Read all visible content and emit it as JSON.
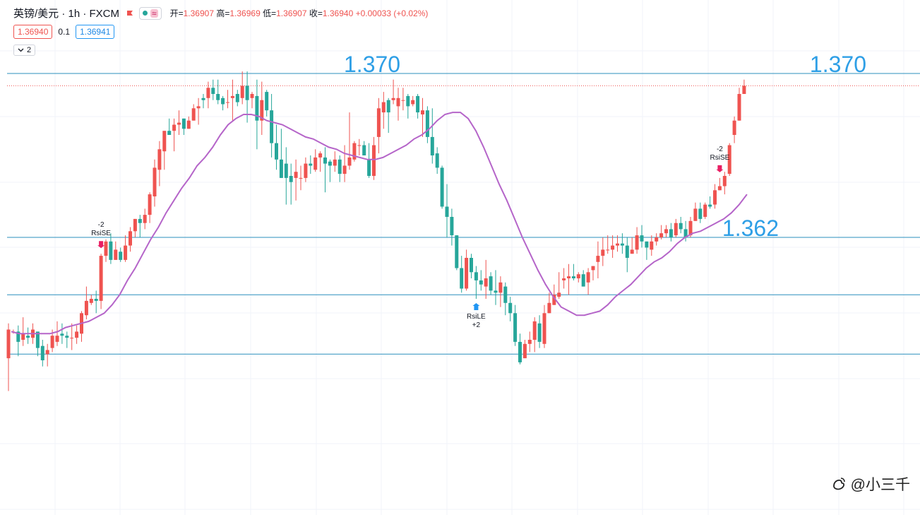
{
  "header": {
    "symbol": "英镑/美元 · 1h · FXCM",
    "ohlc": [
      {
        "label": "开=",
        "value": "1.36907"
      },
      {
        "label": "高=",
        "value": "1.36969"
      },
      {
        "label": "低=",
        "value": "1.36907"
      },
      {
        "label": "收=",
        "value": "1.36940"
      }
    ],
    "change": "+0.00033 (+0.02%)",
    "bid": "1.36940",
    "spread": "0.1",
    "ask": "1.36941",
    "collapse_count": "2"
  },
  "watermark": "@小三千",
  "colors": {
    "up": "#ef5350",
    "down": "#26a69a",
    "ma": "#b565c9",
    "hline": "#2b8fbe",
    "label": "#2e9fe6"
  },
  "chart_data": {
    "type": "candlestick",
    "ylim": [
      1.3565,
      1.3715
    ],
    "price_levels": [
      1.37,
      1.362,
      1.3592,
      1.3563
    ],
    "level_labels": [
      {
        "text": "1.370",
        "level": 1.37,
        "placement": "center"
      },
      {
        "text": "1.370",
        "level": 1.37,
        "placement": "right"
      },
      {
        "text": "1.362",
        "level": 1.362,
        "placement": "right"
      }
    ],
    "current_price": 1.3694,
    "candles": [
      [
        1.3561,
        1.3575,
        1.3545,
        1.3578
      ],
      [
        1.3574,
        1.3574,
        1.3573,
        1.3575
      ],
      [
        1.3574,
        1.3569,
        1.3562,
        1.3577
      ],
      [
        1.357,
        1.3573,
        1.3567,
        1.3581
      ],
      [
        1.3572,
        1.3571,
        1.3568,
        1.3576
      ],
      [
        1.3571,
        1.3575,
        1.3568,
        1.3578
      ],
      [
        1.3574,
        1.3566,
        1.3562,
        1.3574
      ],
      [
        1.3567,
        1.356,
        1.3557,
        1.357
      ],
      [
        1.3563,
        1.3565,
        1.3557,
        1.3568
      ],
      [
        1.3566,
        1.3572,
        1.3564,
        1.3575
      ],
      [
        1.3569,
        1.3572,
        1.3567,
        1.3579
      ],
      [
        1.3573,
        1.3572,
        1.3568,
        1.3578
      ],
      [
        1.3572,
        1.3571,
        1.3566,
        1.3574
      ],
      [
        1.3571,
        1.3571,
        1.3565,
        1.3578
      ],
      [
        1.3571,
        1.3574,
        1.3568,
        1.3577
      ],
      [
        1.3573,
        1.3583,
        1.3569,
        1.3584
      ],
      [
        1.3582,
        1.3589,
        1.358,
        1.3596
      ],
      [
        1.3588,
        1.359,
        1.3587,
        1.3592
      ],
      [
        1.359,
        1.3589,
        1.3583,
        1.3594
      ],
      [
        1.3589,
        1.3611,
        1.3585,
        1.3612
      ],
      [
        1.3611,
        1.3618,
        1.3608,
        1.3619
      ],
      [
        1.3618,
        1.3609,
        1.3607,
        1.3622
      ],
      [
        1.3609,
        1.3614,
        1.3609,
        1.3618
      ],
      [
        1.3613,
        1.3609,
        1.3608,
        1.3615
      ],
      [
        1.3609,
        1.3616,
        1.3608,
        1.3621
      ],
      [
        1.3616,
        1.3623,
        1.3613,
        1.3625
      ],
      [
        1.3623,
        1.3629,
        1.362,
        1.3629
      ],
      [
        1.3629,
        1.3627,
        1.362,
        1.3631
      ],
      [
        1.3627,
        1.3631,
        1.3624,
        1.3634
      ],
      [
        1.3631,
        1.3641,
        1.3627,
        1.3642
      ],
      [
        1.364,
        1.3654,
        1.3635,
        1.3658
      ],
      [
        1.3653,
        1.3663,
        1.3645,
        1.3667
      ],
      [
        1.3662,
        1.3672,
        1.3653,
        1.3672
      ],
      [
        1.3672,
        1.367,
        1.367,
        1.3678
      ],
      [
        1.3672,
        1.3675,
        1.3662,
        1.3678
      ],
      [
        1.3675,
        1.3676,
        1.367,
        1.3682
      ],
      [
        1.3678,
        1.3673,
        1.367,
        1.3678
      ],
      [
        1.3673,
        1.3677,
        1.3673,
        1.3679
      ],
      [
        1.3677,
        1.3683,
        1.3677,
        1.3685
      ],
      [
        1.3683,
        1.3684,
        1.3675,
        1.3688
      ],
      [
        1.3688,
        1.3687,
        1.3683,
        1.369
      ],
      [
        1.3688,
        1.3693,
        1.3683,
        1.3696
      ],
      [
        1.3693,
        1.369,
        1.3687,
        1.3697
      ],
      [
        1.369,
        1.3687,
        1.3685,
        1.3697
      ],
      [
        1.3688,
        1.3685,
        1.3682,
        1.3689
      ],
      [
        1.3686,
        1.3686,
        1.3683,
        1.3692
      ],
      [
        1.3688,
        1.3689,
        1.3677,
        1.3697
      ],
      [
        1.369,
        1.3686,
        1.3684,
        1.3692
      ],
      [
        1.3688,
        1.3694,
        1.3685,
        1.3701
      ],
      [
        1.3694,
        1.3687,
        1.3676,
        1.3701
      ],
      [
        1.3688,
        1.369,
        1.3683,
        1.3691
      ],
      [
        1.3689,
        1.3677,
        1.3663,
        1.3697
      ],
      [
        1.3677,
        1.3687,
        1.367,
        1.3696
      ],
      [
        1.3691,
        1.3682,
        1.3679,
        1.3692
      ],
      [
        1.3682,
        1.3666,
        1.3659,
        1.369
      ],
      [
        1.3666,
        1.3658,
        1.3653,
        1.3675
      ],
      [
        1.3658,
        1.3649,
        1.3649,
        1.3673
      ],
      [
        1.3656,
        1.3649,
        1.3636,
        1.3664
      ],
      [
        1.365,
        1.3647,
        1.3636,
        1.3656
      ],
      [
        1.3649,
        1.3652,
        1.3638,
        1.3658
      ],
      [
        1.3649,
        1.3649,
        1.3643,
        1.3655
      ],
      [
        1.3649,
        1.3656,
        1.3647,
        1.3659
      ],
      [
        1.3656,
        1.3655,
        1.3651,
        1.366
      ],
      [
        1.3653,
        1.3659,
        1.3652,
        1.3663
      ],
      [
        1.3659,
        1.3661,
        1.3652,
        1.3662
      ],
      [
        1.3659,
        1.3656,
        1.3642,
        1.3664
      ],
      [
        1.3657,
        1.3655,
        1.3647,
        1.3658
      ],
      [
        1.3655,
        1.3658,
        1.3652,
        1.3662
      ],
      [
        1.3658,
        1.3651,
        1.3647,
        1.366
      ],
      [
        1.3651,
        1.3655,
        1.3647,
        1.3665
      ],
      [
        1.3655,
        1.3659,
        1.3653,
        1.3681
      ],
      [
        1.3658,
        1.3666,
        1.3657,
        1.3667
      ],
      [
        1.3665,
        1.3665,
        1.366,
        1.3668
      ],
      [
        1.3665,
        1.366,
        1.366,
        1.3667
      ],
      [
        1.3658,
        1.365,
        1.3649,
        1.3666
      ],
      [
        1.365,
        1.3665,
        1.3648,
        1.3669
      ],
      [
        1.3669,
        1.3683,
        1.3661,
        1.3688
      ],
      [
        1.3681,
        1.3686,
        1.3673,
        1.3691
      ],
      [
        1.3687,
        1.3681,
        1.3671,
        1.3688
      ],
      [
        1.3687,
        1.3688,
        1.3685,
        1.3697
      ],
      [
        1.3684,
        1.3688,
        1.3677,
        1.3693
      ],
      [
        1.3687,
        1.3687,
        1.3682,
        1.3693
      ],
      [
        1.3689,
        1.3684,
        1.3678,
        1.369
      ],
      [
        1.3685,
        1.3687,
        1.3684,
        1.3689
      ],
      [
        1.3689,
        1.3681,
        1.3678,
        1.369
      ],
      [
        1.368,
        1.3682,
        1.3669,
        1.3688
      ],
      [
        1.3682,
        1.3669,
        1.3666,
        1.3684
      ],
      [
        1.3669,
        1.366,
        1.3656,
        1.3683
      ],
      [
        1.3661,
        1.3654,
        1.3651,
        1.3664
      ],
      [
        1.3654,
        1.3635,
        1.3634,
        1.3655
      ],
      [
        1.3635,
        1.363,
        1.362,
        1.3646
      ],
      [
        1.363,
        1.3621,
        1.3616,
        1.3634
      ],
      [
        1.3621,
        1.3605,
        1.3604,
        1.3621
      ],
      [
        1.3605,
        1.3595,
        1.3593,
        1.3611
      ],
      [
        1.3595,
        1.361,
        1.3594,
        1.3614
      ],
      [
        1.361,
        1.3603,
        1.36,
        1.3612
      ],
      [
        1.3603,
        1.3599,
        1.359,
        1.3606
      ],
      [
        1.3599,
        1.3597,
        1.3594,
        1.3604
      ],
      [
        1.3596,
        1.36,
        1.359,
        1.3609
      ],
      [
        1.3601,
        1.3594,
        1.3592,
        1.3603
      ],
      [
        1.3594,
        1.3593,
        1.3587,
        1.3604
      ],
      [
        1.3593,
        1.3598,
        1.3586,
        1.3601
      ],
      [
        1.3596,
        1.3588,
        1.3582,
        1.3598
      ],
      [
        1.3588,
        1.3583,
        1.3579,
        1.3591
      ],
      [
        1.3583,
        1.3569,
        1.3567,
        1.3587
      ],
      [
        1.3569,
        1.3559,
        1.3558,
        1.3573
      ],
      [
        1.3561,
        1.3568,
        1.3561,
        1.357
      ],
      [
        1.3568,
        1.357,
        1.3564,
        1.3574
      ],
      [
        1.357,
        1.3579,
        1.3564,
        1.3581
      ],
      [
        1.3578,
        1.3569,
        1.3566,
        1.3582
      ],
      [
        1.3568,
        1.3583,
        1.3566,
        1.3587
      ],
      [
        1.3583,
        1.3588,
        1.3583,
        1.3593
      ],
      [
        1.3587,
        1.3592,
        1.3587,
        1.3597
      ],
      [
        1.3591,
        1.3593,
        1.359,
        1.3603
      ],
      [
        1.3599,
        1.36,
        1.3595,
        1.3605
      ],
      [
        1.36,
        1.3601,
        1.3592,
        1.3607
      ],
      [
        1.3601,
        1.36,
        1.3599,
        1.3607
      ],
      [
        1.36,
        1.3602,
        1.3598,
        1.3603
      ],
      [
        1.3602,
        1.3596,
        1.3596,
        1.3604
      ],
      [
        1.3598,
        1.3603,
        1.3592,
        1.3605
      ],
      [
        1.3604,
        1.3606,
        1.3599,
        1.3606
      ],
      [
        1.3608,
        1.3611,
        1.36,
        1.3618
      ],
      [
        1.3611,
        1.3614,
        1.3606,
        1.362
      ],
      [
        1.3614,
        1.3614,
        1.3612,
        1.3621
      ],
      [
        1.3614,
        1.3616,
        1.361,
        1.3621
      ],
      [
        1.3616,
        1.3617,
        1.3613,
        1.3621
      ],
      [
        1.3617,
        1.3616,
        1.3612,
        1.3622
      ],
      [
        1.3616,
        1.361,
        1.3603,
        1.362
      ],
      [
        1.3612,
        1.3614,
        1.3612,
        1.362
      ],
      [
        1.3614,
        1.3621,
        1.3612,
        1.3625
      ],
      [
        1.3621,
        1.3618,
        1.3615,
        1.3626
      ],
      [
        1.3618,
        1.3615,
        1.3609,
        1.3618
      ],
      [
        1.3614,
        1.3618,
        1.3611,
        1.3621
      ],
      [
        1.3618,
        1.362,
        1.3616,
        1.3622
      ],
      [
        1.362,
        1.3622,
        1.3619,
        1.3626
      ],
      [
        1.3622,
        1.3624,
        1.362,
        1.3626
      ],
      [
        1.3624,
        1.362,
        1.3618,
        1.3627
      ],
      [
        1.3621,
        1.3627,
        1.362,
        1.3629
      ],
      [
        1.3627,
        1.3624,
        1.3622,
        1.363
      ],
      [
        1.3624,
        1.362,
        1.3618,
        1.3628
      ],
      [
        1.3621,
        1.3628,
        1.362,
        1.363
      ],
      [
        1.3628,
        1.3634,
        1.3628,
        1.3637
      ],
      [
        1.3634,
        1.3629,
        1.3627,
        1.3637
      ],
      [
        1.363,
        1.3636,
        1.3629,
        1.3637
      ],
      [
        1.3636,
        1.3635,
        1.3634,
        1.364
      ],
      [
        1.3636,
        1.3643,
        1.3634,
        1.3646
      ],
      [
        1.3643,
        1.3645,
        1.3643,
        1.3649
      ],
      [
        1.3645,
        1.365,
        1.3641,
        1.3652
      ],
      [
        1.3651,
        1.3665,
        1.365,
        1.3666
      ],
      [
        1.367,
        1.3677,
        1.3666,
        1.3679
      ],
      [
        1.3677,
        1.369,
        1.3677,
        1.3693
      ],
      [
        1.369,
        1.3694,
        1.369,
        1.3697
      ]
    ],
    "ma_line": [
      1.3574,
      1.3573,
      1.3573,
      1.3573,
      1.3573,
      1.3573,
      1.3574,
      1.3576,
      1.3577,
      1.3578,
      1.3579,
      1.3581,
      1.3583,
      1.3587,
      1.3592,
      1.3599,
      1.3605,
      1.3612,
      1.3619,
      1.3625,
      1.3632,
      1.3638,
      1.3644,
      1.3649,
      1.3655,
      1.3659,
      1.3664,
      1.367,
      1.3675,
      1.3678,
      1.368,
      1.368,
      1.3679,
      1.3677,
      1.3676,
      1.3675,
      1.3673,
      1.3671,
      1.3669,
      1.3668,
      1.3666,
      1.3664,
      1.3663,
      1.3661,
      1.366,
      1.3659,
      1.3658,
      1.3658,
      1.3659,
      1.3661,
      1.3663,
      1.3665,
      1.3668,
      1.367,
      1.3673,
      1.3677,
      1.368,
      1.3681,
      1.3681,
      1.3678,
      1.3672,
      1.3664,
      1.3655,
      1.3646,
      1.3638,
      1.3629,
      1.362,
      1.3612,
      1.3604,
      1.3597,
      1.3591,
      1.3586,
      1.3584,
      1.3582,
      1.3582,
      1.3583,
      1.3584,
      1.3587,
      1.3591,
      1.3594,
      1.3597,
      1.3601,
      1.3605,
      1.3608,
      1.361,
      1.3613,
      1.3617,
      1.362,
      1.3622,
      1.3623,
      1.3625,
      1.3627,
      1.3629,
      1.3632,
      1.3636,
      1.3641
    ],
    "ma_label": "",
    "signals": [
      {
        "candle": 19,
        "text": "-2",
        "name": "RsiSE",
        "placement": "above"
      },
      {
        "candle": 96,
        "text": "RsiLE",
        "qty": "+2",
        "placement": "below"
      },
      {
        "candle": 146,
        "text": "-2",
        "name": "RsiSE",
        "placement": "above"
      }
    ]
  }
}
